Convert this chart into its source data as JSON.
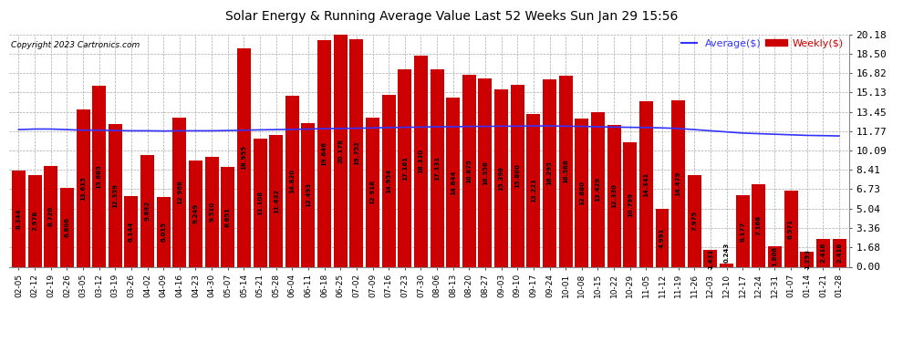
{
  "title": "Solar Energy & Running Average Value Last 52 Weeks Sun Jan 29 15:56",
  "copyright": "Copyright 2023 Cartronics.com",
  "bar_color": "#cc0000",
  "avg_line_color": "#3333ff",
  "background_color": "#ffffff",
  "plot_background": "#ffffff",
  "grid_color": "#aaaaaa",
  "categories": [
    "02-05",
    "02-12",
    "02-19",
    "02-26",
    "03-05",
    "03-12",
    "03-19",
    "03-26",
    "04-02",
    "04-09",
    "04-16",
    "04-23",
    "04-30",
    "05-07",
    "05-14",
    "05-21",
    "05-28",
    "06-04",
    "06-11",
    "06-18",
    "06-25",
    "07-02",
    "07-09",
    "07-16",
    "07-23",
    "07-30",
    "08-06",
    "08-13",
    "08-20",
    "08-27",
    "09-03",
    "09-10",
    "09-17",
    "09-24",
    "10-01",
    "10-08",
    "10-15",
    "10-22",
    "10-29",
    "11-05",
    "11-12",
    "11-19",
    "11-26",
    "12-03",
    "12-10",
    "12-17",
    "12-24",
    "12-31",
    "01-07",
    "01-14",
    "01-21",
    "01-28"
  ],
  "weekly_values": [
    8.344,
    7.978,
    8.72,
    6.806,
    13.615,
    15.685,
    12.359,
    6.144,
    9.692,
    6.015,
    12.968,
    9.249,
    9.51,
    8.651,
    18.955,
    11.108,
    11.432,
    14.82,
    12.493,
    19.646,
    20.178,
    19.752,
    12.918,
    14.954,
    17.161,
    18.33,
    17.131,
    14.644,
    16.675,
    16.356,
    15.396,
    15.8,
    13.221,
    16.295,
    16.588,
    12.88,
    13.429,
    12.33,
    10.799,
    14.341,
    4.991,
    14.479,
    7.975,
    1.431,
    0.243,
    6.177,
    7.168,
    1.806,
    6.571,
    1.293,
    2.416,
    2.416
  ],
  "bar_value_labels": [
    "8.344",
    "7.978",
    "8.720",
    "6.806",
    "13.615",
    "15.685",
    "12.359",
    "6.144",
    "9.692",
    "6.015",
    "12.968",
    "9.249",
    "9.510",
    "8.651",
    "18.955",
    "11.108",
    "11.432",
    "14.820",
    "12.493",
    "19.646",
    "20.178",
    "19.752",
    "12.918",
    "14.954",
    "17.161",
    "18.330",
    "17.131",
    "14.644",
    "16.675",
    "16.356",
    "15.396",
    "15.800",
    "13.221",
    "16.295",
    "16.588",
    "12.880",
    "13.429",
    "12.330",
    "10.799",
    "14.341",
    "4.991",
    "14.479",
    "7.975",
    "1.431",
    "0.243",
    "6.177",
    "7.168",
    "1.806",
    "6.571",
    "1.293",
    "2.416",
    "2.416"
  ],
  "avg_values": [
    11.9,
    11.95,
    11.95,
    11.9,
    11.85,
    11.85,
    11.82,
    11.8,
    11.8,
    11.78,
    11.8,
    11.8,
    11.8,
    11.82,
    11.85,
    11.88,
    11.9,
    11.92,
    11.95,
    11.98,
    12.0,
    12.02,
    12.05,
    12.08,
    12.1,
    12.12,
    12.15,
    12.15,
    12.18,
    12.18,
    12.2,
    12.2,
    12.22,
    12.22,
    12.2,
    12.18,
    12.15,
    12.12,
    12.1,
    12.08,
    12.05,
    12.0,
    11.9,
    11.8,
    11.7,
    11.6,
    11.55,
    11.5,
    11.45,
    11.4,
    11.38,
    11.35
  ],
  "ylim": [
    0,
    20.18
  ],
  "yticks": [
    0.0,
    1.68,
    3.36,
    5.04,
    6.73,
    8.41,
    10.09,
    11.77,
    13.45,
    15.13,
    16.82,
    18.5,
    20.18
  ],
  "legend_avg_label": "Average($)",
  "legend_weekly_label": "Weekly($)"
}
